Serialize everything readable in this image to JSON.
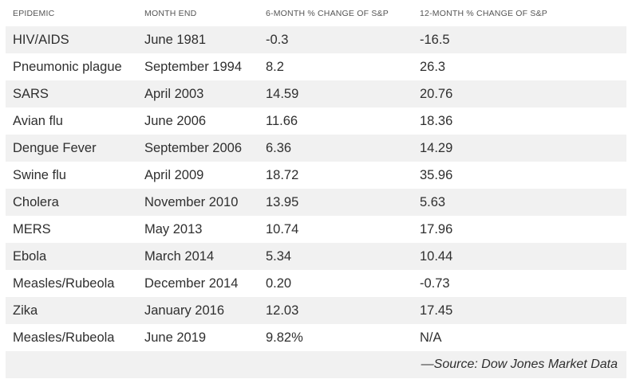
{
  "chart_data": {
    "type": "table",
    "columns": [
      "EPIDEMIC",
      "MONTH END",
      "6-MONTH % CHANGE OF S&P",
      "12-MONTH % CHANGE OF S&P"
    ],
    "rows": [
      [
        "HIV/AIDS",
        "June 1981",
        "-0.3",
        "-16.5"
      ],
      [
        "Pneumonic plague",
        "September 1994",
        "8.2",
        "26.3"
      ],
      [
        "SARS",
        "April 2003",
        "14.59",
        "20.76"
      ],
      [
        "Avian flu",
        "June 2006",
        "11.66",
        "18.36"
      ],
      [
        "Dengue Fever",
        "September 2006",
        "6.36",
        "14.29"
      ],
      [
        "Swine flu",
        "April 2009",
        "18.72",
        "35.96"
      ],
      [
        "Cholera",
        "November 2010",
        "13.95",
        "5.63"
      ],
      [
        "MERS",
        "May 2013",
        "10.74",
        "17.96"
      ],
      [
        "Ebola",
        "March 2014",
        "5.34",
        "10.44"
      ],
      [
        "Measles/Rubeola",
        "December 2014",
        "0.20",
        "-0.73"
      ],
      [
        "Zika",
        "January 2016",
        "12.03",
        "17.45"
      ],
      [
        "Measles/Rubeola",
        "June 2019",
        "9.82%",
        "N/A"
      ]
    ],
    "source": "—Source: Dow Jones Market Data"
  },
  "colors": {
    "row_shade": "#f1f1f1",
    "text": "#2f2f2f",
    "header_text": "#555555"
  }
}
